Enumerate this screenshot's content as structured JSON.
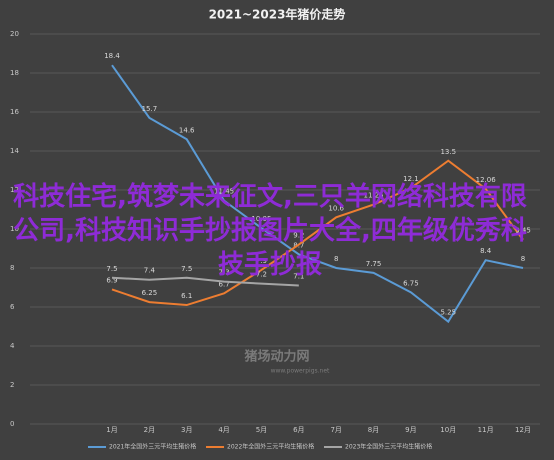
{
  "chart_data": {
    "type": "line",
    "title": "2021~2023年猪价走势",
    "categories": [
      "1月",
      "2月",
      "3月",
      "4月",
      "5月",
      "6月",
      "7月",
      "8月",
      "9月",
      "10月",
      "11月",
      "12月"
    ],
    "ylim": [
      0,
      20
    ],
    "yticks": [
      0,
      2,
      4,
      6,
      8,
      10,
      12,
      14,
      16,
      18,
      20
    ],
    "grid": true,
    "series": [
      {
        "name": "2021年全国外三元平均生猪价格",
        "color": "#5b9bd5",
        "values": [
          18.4,
          15.7,
          14.6,
          11.45,
          10.05,
          8.7,
          8,
          7.75,
          6.75,
          5.25,
          8.4,
          8
        ]
      },
      {
        "name": "2022年全国外三元平均生猪价格",
        "color": "#ed7d31",
        "values": [
          6.9,
          6.25,
          6.1,
          6.7,
          7.9,
          9.2,
          10.6,
          11.25,
          12.1,
          13.5,
          12.06,
          9.45
        ]
      },
      {
        "name": "2023年全国外三元平均生猪价格",
        "color": "#a5a5a5",
        "values": [
          7.5,
          7.4,
          7.5,
          7.3,
          7.2,
          7.1,
          null,
          null,
          null,
          null,
          null,
          null
        ]
      }
    ],
    "watermark": "科技住宅,筑梦未来征文,三只羊网络科技有限公司,科技知识手抄报图片大全,四年级优秀科技手抄报",
    "logo": "猪场动力网",
    "logo_url": "www.powerpigs.net"
  }
}
